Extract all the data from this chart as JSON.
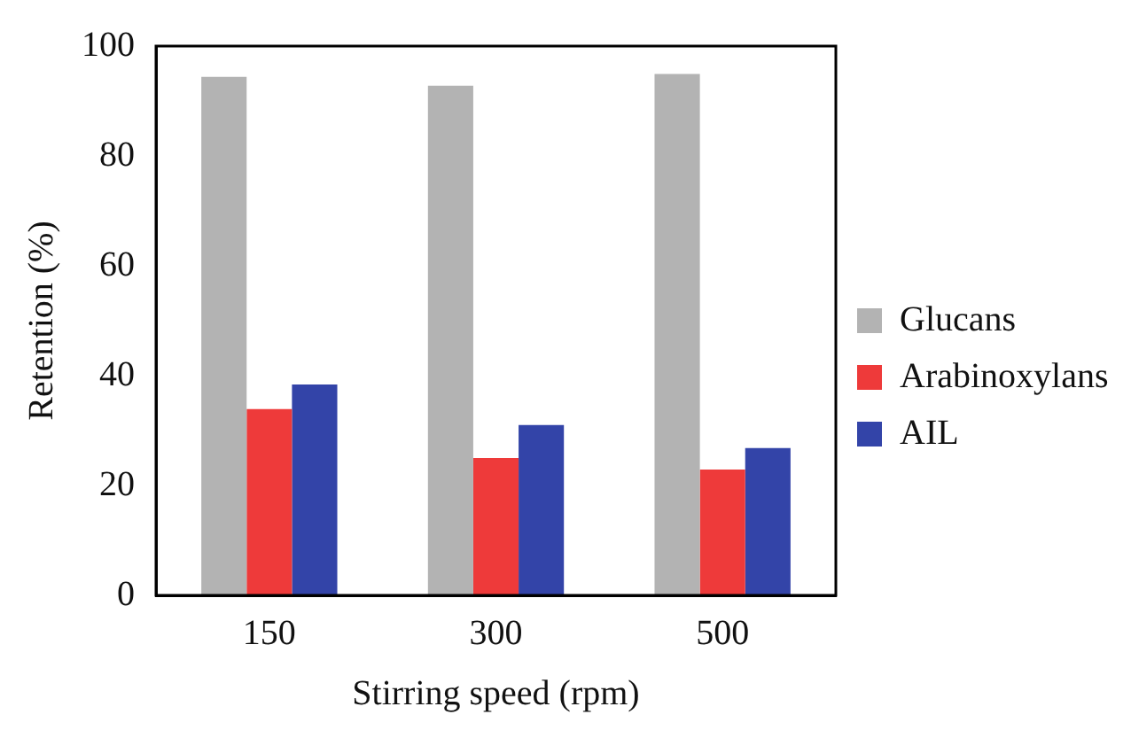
{
  "chart_data": {
    "type": "bar",
    "xlabel": "Stirring speed (rpm)",
    "ylabel": "Retention (%)",
    "categories": [
      "150",
      "300",
      "500"
    ],
    "series": [
      {
        "name": "Glucans",
        "color": "#b3b3b3",
        "values": [
          94.4,
          92.8,
          94.9
        ]
      },
      {
        "name": "Arabinoxylans",
        "color": "#ee3a3a",
        "values": [
          33.9,
          25,
          22.9
        ]
      },
      {
        "name": "AIL",
        "color": "#3344a8",
        "values": [
          38.4,
          31,
          26.8
        ]
      }
    ],
    "ylim": [
      0,
      100
    ],
    "yticks": [
      0,
      20,
      40,
      60,
      80,
      100
    ],
    "grid": false,
    "legend": "right"
  }
}
